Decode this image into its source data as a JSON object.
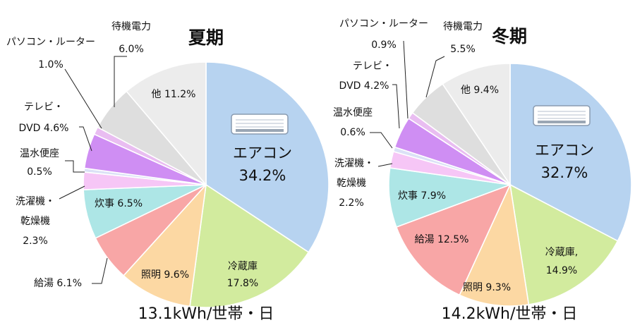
{
  "chart_data": [
    {
      "type": "pie",
      "title": "夏期",
      "total_label": "13.1kWh/世帯・日",
      "slices": [
        {
          "name": "エアコン",
          "value": 34.2,
          "color": "#b7d3f0"
        },
        {
          "name": "冷蔵庫",
          "value": 17.8,
          "color": "#d2eb9e"
        },
        {
          "name": "照明",
          "value": 9.6,
          "color": "#fcd8a3"
        },
        {
          "name": "給湯",
          "value": 6.1,
          "color": "#f8a6a6"
        },
        {
          "name": "炊事",
          "value": 6.5,
          "color": "#ade6e6"
        },
        {
          "name": "洗濯機・乾燥機",
          "value": 2.3,
          "color": "#f6c6f6"
        },
        {
          "name": "温水便座",
          "value": 0.5,
          "color": "#dbe1f6"
        },
        {
          "name": "テレビ・DVD",
          "value": 4.6,
          "color": "#cf8ef3"
        },
        {
          "name": "パソコン・ルーター",
          "value": 1.0,
          "color": "#e9bdf1"
        },
        {
          "name": "待機電力",
          "value": 6.0,
          "color": "#dedede"
        },
        {
          "name": "他",
          "value": 11.2,
          "color": "#ececec"
        }
      ],
      "labels": {
        "aircon": {
          "name": "エアコン",
          "pct": "34.2%"
        },
        "fridge": {
          "name": "冷蔵庫",
          "pct": "17.8%"
        },
        "light": "照明 9.6%",
        "hotwater": "給湯 6.1%",
        "cooking": "炊事 6.5%",
        "washer": {
          "l1": "洗濯機・",
          "l2": "乾燥機",
          "l3": "2.3%"
        },
        "toilet": {
          "l1": "温水便座",
          "l2": "0.5%"
        },
        "tv": {
          "l1": "テレビ・",
          "l2": "DVD 4.6%"
        },
        "pc": {
          "l1": "パソコン・ルーター",
          "l2": "1.0%"
        },
        "standby": {
          "l1": "待機電力",
          "l2": "6.0%"
        },
        "other": "他 11.2%"
      }
    },
    {
      "type": "pie",
      "title": "冬期",
      "total_label": "14.2kWh/世帯・日",
      "slices": [
        {
          "name": "エアコン",
          "value": 32.7,
          "color": "#b7d3f0"
        },
        {
          "name": "冷蔵庫",
          "value": 14.9,
          "color": "#d2eb9e"
        },
        {
          "name": "照明",
          "value": 9.3,
          "color": "#fcd8a3"
        },
        {
          "name": "給湯",
          "value": 12.5,
          "color": "#f8a6a6"
        },
        {
          "name": "炊事",
          "value": 7.9,
          "color": "#ade6e6"
        },
        {
          "name": "洗濯機・乾燥機",
          "value": 2.2,
          "color": "#f6c6f6"
        },
        {
          "name": "温水便座",
          "value": 0.6,
          "color": "#dbe1f6"
        },
        {
          "name": "テレビ・DVD",
          "value": 4.2,
          "color": "#cf8ef3"
        },
        {
          "name": "パソコン・ルーター",
          "value": 0.9,
          "color": "#e9bdf1"
        },
        {
          "name": "待機電力",
          "value": 5.5,
          "color": "#dedede"
        },
        {
          "name": "他",
          "value": 9.4,
          "color": "#ececec"
        }
      ],
      "labels": {
        "aircon": {
          "name": "エアコン",
          "pct": "32.7%"
        },
        "fridge": {
          "name": "冷蔵庫,",
          "pct": "14.9%"
        },
        "light": "照明 9.3%",
        "hotwater": "給湯 12.5%",
        "cooking": "炊事 7.9%",
        "washer": {
          "l1": "洗濯機・",
          "l2": "乾燥機",
          "l3": "2.2%"
        },
        "toilet": {
          "l1": "温水便座",
          "l2": "0.6%"
        },
        "tv": {
          "l1": "テレビ・",
          "l2": "DVD 4.2%"
        },
        "pc": {
          "l1": "パソコン・ルーター",
          "l2": "0.9%"
        },
        "standby": {
          "l1": "待機電力",
          "l2": "5.5%"
        },
        "other": "他 9.4%"
      }
    }
  ],
  "icons": {
    "aircon": "air-conditioner-icon"
  }
}
